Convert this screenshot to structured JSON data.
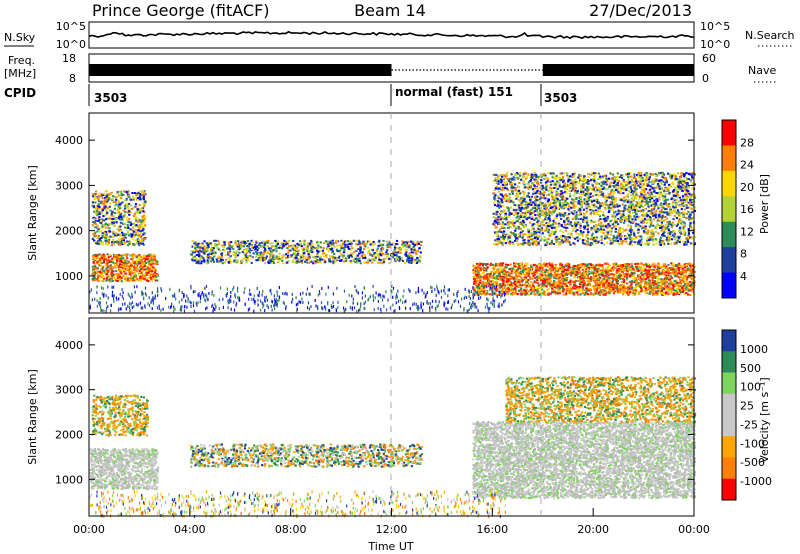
{
  "header": {
    "station": "Prince George (fitACF)",
    "beam": "Beam 14",
    "date": "27/Dec/2013"
  },
  "noise_panel": {
    "left_label": "N.Sky",
    "left_ticks": [
      "10^5",
      "10^0"
    ],
    "right_label": "N.Search",
    "right_ticks": [
      "10^5",
      "10^0"
    ]
  },
  "freq_panel": {
    "left_label_1": "Freq.",
    "left_label_2": "[MHz]",
    "left_ticks": [
      "18",
      "8"
    ],
    "right_label": "Nave",
    "right_ticks": [
      "60",
      "0"
    ]
  },
  "cpid_panel": {
    "label": "CPID",
    "segments": [
      {
        "start_hour": 0,
        "end_hour": 12,
        "label": "3503"
      },
      {
        "start_hour": 12,
        "end_hour": 18,
        "label": "normal (fast) 151"
      },
      {
        "start_hour": 18,
        "end_hour": 24,
        "label": "3503"
      }
    ]
  },
  "chart_data": [
    {
      "type": "heatmap",
      "parameter": "power",
      "ylabel": "Slant Range [km]",
      "ylim": [
        180,
        4600
      ],
      "yticks": [
        1000,
        2000,
        3000,
        4000
      ],
      "xlim": [
        0,
        24
      ],
      "colorbar_label": "Power [dB]",
      "colorbar_ticks": [
        "28",
        "24",
        "20",
        "16",
        "12",
        "8",
        "4"
      ],
      "colorbar_colors": [
        "#ff0000",
        "#ff7f00",
        "#ffd700",
        "#b2d235",
        "#2e8b57",
        "#1f3f9f",
        "#0000ff"
      ],
      "scatter_regions": [
        {
          "t0": 0.1,
          "t1": 2.7,
          "r0": 900,
          "r1": 1500,
          "value": "high"
        },
        {
          "t0": 0.1,
          "t1": 2.2,
          "r0": 1700,
          "r1": 2900,
          "value": "medium"
        },
        {
          "t0": 4.0,
          "t1": 13.2,
          "r0": 1300,
          "r1": 1800,
          "value": "medium"
        },
        {
          "t0": 15.2,
          "t1": 24.0,
          "r0": 600,
          "r1": 1300,
          "value": "high"
        },
        {
          "t0": 16.0,
          "t1": 24.0,
          "r0": 1700,
          "r1": 3300,
          "value": "medium"
        },
        {
          "t0": 0.0,
          "t1": 16.5,
          "r0": 250,
          "r1": 700,
          "value": "low"
        }
      ]
    },
    {
      "type": "heatmap",
      "parameter": "velocity",
      "ylabel": "Slant Range [km]",
      "ylim": [
        180,
        4600
      ],
      "yticks": [
        1000,
        2000,
        3000,
        4000
      ],
      "xlim": [
        0,
        24
      ],
      "xticks": [
        "00:00",
        "04:00",
        "08:00",
        "12:00",
        "16:00",
        "20:00",
        "00:00"
      ],
      "xlabel": "Time UT",
      "colorbar_label": "Velocity [m s⁻¹]",
      "colorbar_ticks": [
        "1000",
        "500",
        "100",
        "25",
        "-25",
        "-100",
        "-500",
        "-1000"
      ],
      "colorbar_colors": [
        "#1f3f9f",
        "#2e8b57",
        "#7fd35f",
        "#c8c8c8",
        "#c8c8c8",
        "#ffa500",
        "#ff7f00",
        "#ff0000"
      ],
      "scatter_regions": [
        {
          "t0": 0.0,
          "t1": 2.7,
          "r0": 800,
          "r1": 1700,
          "value": "ground"
        },
        {
          "t0": 0.1,
          "t1": 2.3,
          "r0": 2000,
          "r1": 2900,
          "value": "negative"
        },
        {
          "t0": 4.0,
          "t1": 13.2,
          "r0": 1300,
          "r1": 1800,
          "value": "mixed"
        },
        {
          "t0": 15.2,
          "t1": 24.0,
          "r0": 600,
          "r1": 2300,
          "value": "ground"
        },
        {
          "t0": 16.5,
          "t1": 24.0,
          "r0": 2300,
          "r1": 3300,
          "value": "negative"
        },
        {
          "t0": 0.0,
          "t1": 16.5,
          "r0": 200,
          "r1": 700,
          "value": "mixed-low"
        }
      ]
    }
  ]
}
